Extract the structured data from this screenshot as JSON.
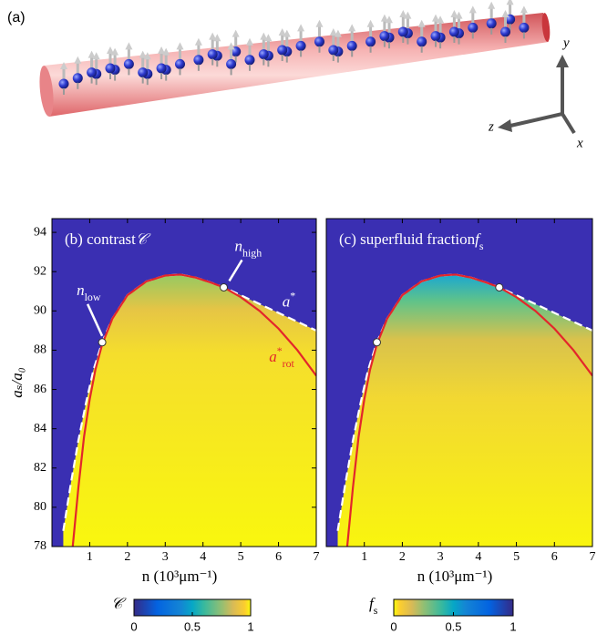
{
  "panel_a": {
    "label": "(a)",
    "axis_y": "y",
    "axis_z": "z",
    "axis_x": "x"
  },
  "chart_data": [
    {
      "type": "heatmap",
      "title": "(b) contrast",
      "title_symbol": "𝒞",
      "xlabel": "n   (10³μm⁻¹)",
      "ylabel": "aₛ/a₀",
      "xlim": [
        0,
        7
      ],
      "ylim": [
        78,
        94.7
      ],
      "xticks": [
        1,
        2,
        3,
        4,
        5,
        6,
        7
      ],
      "yticks": [
        78,
        80,
        82,
        84,
        86,
        88,
        90,
        92,
        94
      ],
      "series": [
        {
          "name": "a",
          "name_sup": "*",
          "color": "#ffffff",
          "x": [
            0.3,
            0.5,
            0.7,
            0.9,
            1.1,
            1.33,
            1.6,
            2.0,
            2.5,
            3.0,
            3.4,
            3.8,
            4.2,
            4.55,
            5.0,
            6.0,
            7.0
          ],
          "values": [
            78.8,
            81.2,
            83.4,
            85.3,
            87.0,
            88.4,
            89.6,
            90.8,
            91.5,
            91.8,
            91.85,
            91.7,
            91.45,
            91.2,
            90.8,
            89.9,
            89.0
          ]
        },
        {
          "name": "a",
          "name_sup": "*",
          "name_sub": "rot",
          "color": "#e3262b",
          "x": [
            0.55,
            0.7,
            0.85,
            1.0,
            1.15,
            1.33,
            1.6,
            2.0,
            2.5,
            3.0,
            3.4,
            3.8,
            4.2,
            4.55,
            5.0,
            5.5,
            6.0,
            6.5,
            7.0
          ],
          "values": [
            78.0,
            81.0,
            83.6,
            85.5,
            87.0,
            88.3,
            89.6,
            90.8,
            91.5,
            91.8,
            91.85,
            91.7,
            91.45,
            91.2,
            90.7,
            90.0,
            89.1,
            88.0,
            86.7
          ]
        }
      ],
      "points": [
        {
          "x": 1.33,
          "y": 88.4
        },
        {
          "x": 4.55,
          "y": 91.2
        }
      ],
      "point_labels": [
        {
          "symbol": "n",
          "sub": "low"
        },
        {
          "symbol": "n",
          "sub": "high"
        }
      ],
      "colorbar": {
        "symbol": "𝒞",
        "lim": [
          0,
          1
        ],
        "ticks": [
          0,
          0.5,
          1
        ],
        "reversed": false
      }
    },
    {
      "type": "heatmap",
      "title": "(c) superfluid fraction",
      "title_symbol": "f",
      "title_symbol_sub": "s",
      "xlabel": "n   (10³μm⁻¹)",
      "xlim": [
        0,
        7
      ],
      "ylim": [
        78,
        94.7
      ],
      "xticks": [
        1,
        2,
        3,
        4,
        5,
        6,
        7
      ],
      "series": [
        {
          "color": "#ffffff",
          "x": [
            0.3,
            0.5,
            0.7,
            0.9,
            1.1,
            1.33,
            1.6,
            2.0,
            2.5,
            3.0,
            3.4,
            3.8,
            4.2,
            4.55,
            5.0,
            6.0,
            7.0
          ],
          "values": [
            78.8,
            81.2,
            83.4,
            85.3,
            87.0,
            88.4,
            89.6,
            90.8,
            91.5,
            91.8,
            91.85,
            91.7,
            91.45,
            91.2,
            90.8,
            89.9,
            89.0
          ]
        },
        {
          "color": "#e3262b",
          "x": [
            0.55,
            0.7,
            0.85,
            1.0,
            1.15,
            1.33,
            1.6,
            2.0,
            2.5,
            3.0,
            3.4,
            3.8,
            4.2,
            4.55,
            5.0,
            5.5,
            6.0,
            6.5,
            7.0
          ],
          "values": [
            78.0,
            81.0,
            83.6,
            85.5,
            87.0,
            88.3,
            89.6,
            90.8,
            91.5,
            91.8,
            91.85,
            91.7,
            91.45,
            91.2,
            90.7,
            90.0,
            89.1,
            88.0,
            86.7
          ]
        }
      ],
      "points": [
        {
          "x": 1.33,
          "y": 88.4
        },
        {
          "x": 4.55,
          "y": 91.2
        }
      ],
      "colorbar": {
        "symbol": "f",
        "symbol_sub": "s",
        "lim": [
          0,
          1
        ],
        "ticks": [
          0,
          0.5,
          1
        ],
        "reversed": true
      }
    }
  ]
}
